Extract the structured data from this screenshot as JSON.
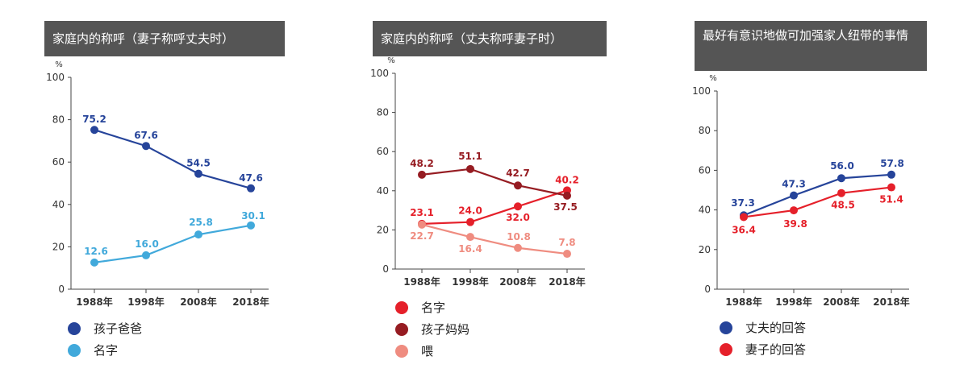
{
  "chart_data": [
    {
      "type": "line",
      "title": "家庭内的称呼（妻子称呼丈夫时）",
      "unit": "%",
      "categories": [
        "1988年",
        "1998年",
        "2008年",
        "2018年"
      ],
      "ylim": [
        0,
        100
      ],
      "yticks": [
        "0",
        "20",
        "40",
        "60",
        "80",
        "100"
      ],
      "series": [
        {
          "name": "孩子爸爸",
          "color": "#26449a",
          "values": [
            75.2,
            67.6,
            54.5,
            47.6
          ],
          "labels": [
            "75.2",
            "67.6",
            "54.5",
            "47.6"
          ]
        },
        {
          "name": "名字",
          "color": "#41a9db",
          "values": [
            12.6,
            16.0,
            25.8,
            30.1
          ],
          "labels": [
            "12.6",
            "16.0",
            "25.8",
            "30.1"
          ]
        }
      ]
    },
    {
      "type": "line",
      "title": "家庭内的称呼（丈夫称呼妻子时）",
      "unit": "%",
      "categories": [
        "1988年",
        "1998年",
        "2008年",
        "2018年"
      ],
      "ylim": [
        0,
        100
      ],
      "yticks": [
        "0",
        "20",
        "40",
        "60",
        "80",
        "100"
      ],
      "series": [
        {
          "name": "名字",
          "color": "#e5202a",
          "values": [
            23.1,
            24.0,
            32.0,
            40.2
          ],
          "labels": [
            "23.1",
            "24.0",
            "32.0",
            "40.2"
          ]
        },
        {
          "name": "孩子妈妈",
          "color": "#961c22",
          "values": [
            48.2,
            51.1,
            42.7,
            37.5
          ],
          "labels": [
            "48.2",
            "51.1",
            "42.7",
            "37.5"
          ]
        },
        {
          "name": "喂",
          "color": "#ef8c80",
          "values": [
            22.7,
            16.4,
            10.8,
            7.8
          ],
          "labels": [
            "22.7",
            "16.4",
            "10.8",
            "7.8"
          ]
        }
      ]
    },
    {
      "type": "line",
      "title": "最好有意识地做可加强家人纽带的事情",
      "unit": "%",
      "categories": [
        "1988年",
        "1998年",
        "2008年",
        "2018年"
      ],
      "ylim": [
        0,
        100
      ],
      "yticks": [
        "0",
        "20",
        "40",
        "60",
        "80",
        "100"
      ],
      "series": [
        {
          "name": "丈夫的回答",
          "color": "#26449a",
          "values": [
            37.3,
            47.3,
            56.0,
            57.8
          ],
          "labels": [
            "37.3",
            "47.3",
            "56.0",
            "57.8"
          ]
        },
        {
          "name": "妻子的回答",
          "color": "#e5202a",
          "values": [
            36.4,
            39.8,
            48.5,
            51.4
          ],
          "labels": [
            "36.4",
            "39.8",
            "48.5",
            "51.4"
          ]
        }
      ]
    }
  ]
}
